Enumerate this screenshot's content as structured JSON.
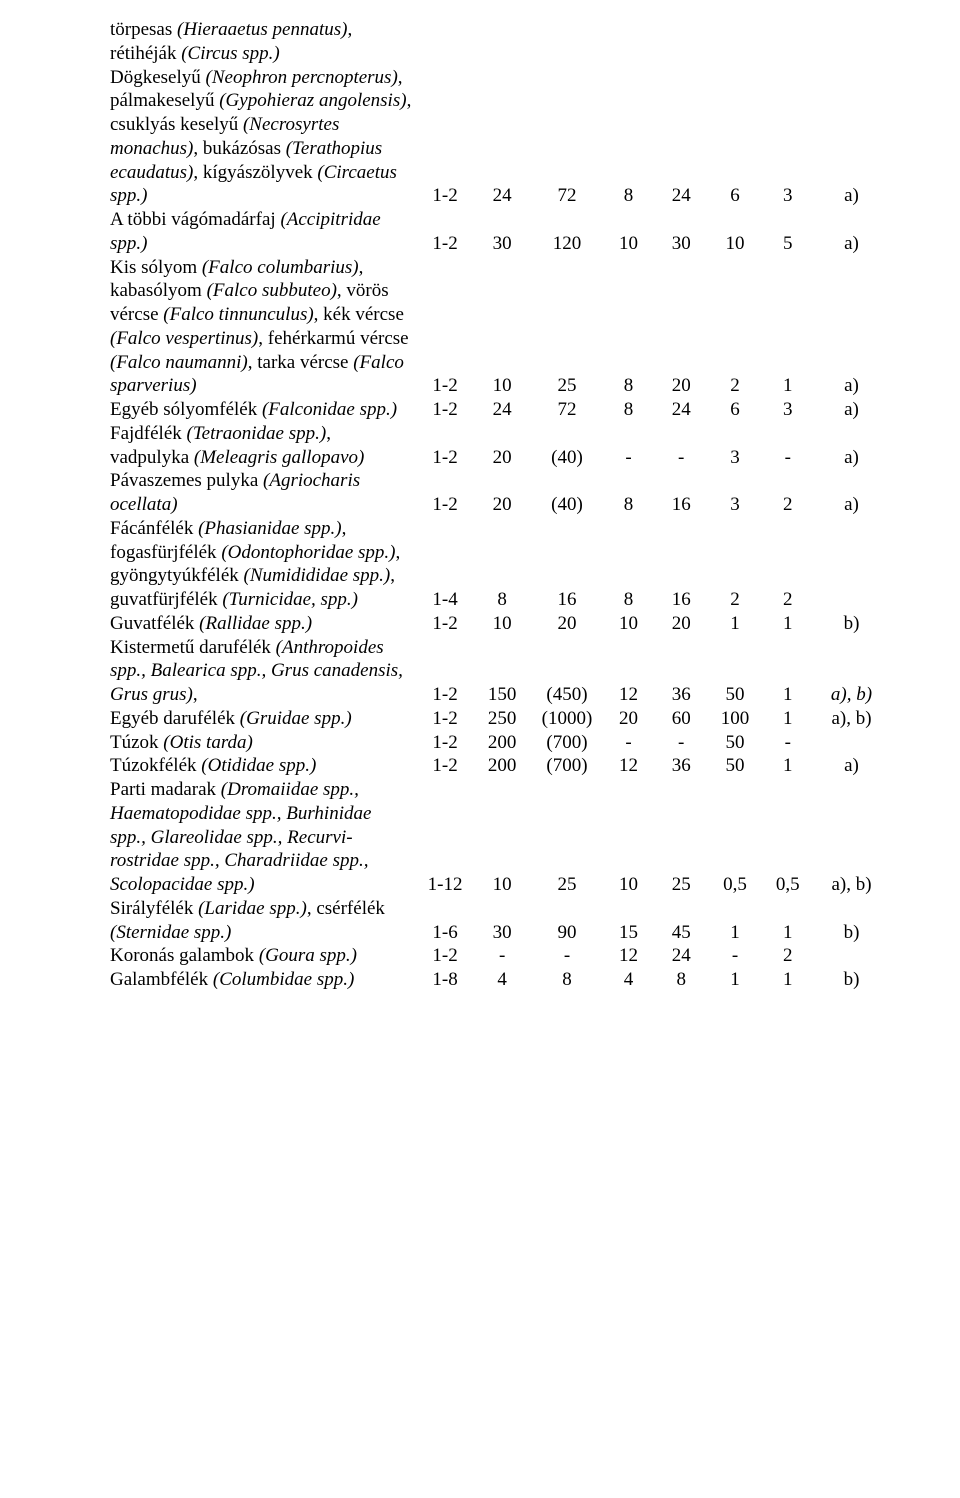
{
  "rows": [
    {
      "label_html": "törpesas <span class='it'>(Hieraaetus pennatus)</span>, rétihéják <span class='it'>(Circus spp.)</span><br>Dögkeselyű <span class='it'>(Neophron percnopterus)</span>, pálmakeselyű <span class='it'>(Gypohieraz angolensis)</span>, csuklyás keselyű <span class='it'>(Necrosyrtes monachus)</span>, bukázósas <span class='it'>(Terathopius ecaudatus)</span>, kígyászölyvek <span class='it'>(Circaetus spp.)</span>",
      "cols": [
        "1-2",
        "24",
        "72",
        "8",
        "24",
        "6",
        "3",
        "a)"
      ]
    },
    {
      "label_html": "A többi vágómadárfaj <span class='it'>(Accipitridae spp.)</span>",
      "cols": [
        "1-2",
        "30",
        "120",
        "10",
        "30",
        "10",
        "5",
        "a)"
      ]
    },
    {
      "label_html": "Kis sólyom <span class='it'>(Falco columbarius)</span>, kabasólyom <span class='it'>(Falco subbuteo)</span>, vörös vércse <span class='it'>(Falco tinnunculus)</span>, kék vércse <span class='it'>(Falco vespertinus)</span>, fehérkarmú vércse <span class='it'>(Falco naumanni)</span>, tarka vércse <span class='it'>(Falco sparverius)</span>",
      "cols": [
        "1-2",
        "10",
        "25",
        "8",
        "20",
        "2",
        "1",
        "a)"
      ]
    },
    {
      "label_html": "Egyéb sólyomfélék <span class='it'>(Falconidae spp.)</span>",
      "cols": [
        "1-2",
        "24",
        "72",
        "8",
        "24",
        "6",
        "3",
        "a)"
      ]
    },
    {
      "label_html": "Fajdfélék <span class='it'>(Tetraonidae spp.)</span>, vadpulyka <span class='it'>(Meleagris gallopavo)</span>",
      "cols": [
        "1-2",
        "20",
        "(40)",
        "-",
        "-",
        "3",
        "-",
        "a)"
      ]
    },
    {
      "label_html": "Pávaszemes pulyka <span class='it'>(Agriocharis ocellata)</span>",
      "cols": [
        "1-2",
        "20",
        "(40)",
        "8",
        "16",
        "3",
        "2",
        "a)"
      ]
    },
    {
      "label_html": "Fácánfélék <span class='it'>(Phasianidae spp.)</span>, fogasfürjfélék <span class='it'>(Odontophoridae spp.)</span>, gyöngytyúkfélék <span class='it'>(Numidididae spp.)</span>, guvatfürjfélék <span class='it'>(Turnicidae, spp.)</span>",
      "cols": [
        "1-4",
        "8",
        "16",
        "8",
        "16",
        "2",
        "2",
        ""
      ]
    },
    {
      "label_html": "Guvatfélék <span class='it'>(Rallidae spp.)</span>",
      "cols": [
        "1-2",
        "10",
        "20",
        "10",
        "20",
        "1",
        "1",
        "b)"
      ]
    },
    {
      "label_html": "Kistermetű darufélék <span class='it'>(Anthropoides spp., Balearica spp., Grus canadensis, Grus grus)</span>,",
      "cols": [
        "1-2",
        "150",
        "(450)",
        "12",
        "36",
        "50",
        "1",
        "<span class='it'>a), b)</span>"
      ]
    },
    {
      "label_html": "Egyéb darufélék <span class='it'>(Gruidae spp.)</span>",
      "cols": [
        "1-2",
        "250",
        "(1000)",
        "20",
        "60",
        "100",
        "1",
        "a), b)"
      ]
    },
    {
      "label_html": "Túzok <span class='it'>(Otis tarda)</span>",
      "cols": [
        "1-2",
        "200",
        "(700)",
        "-",
        "-",
        "50",
        "-",
        ""
      ]
    },
    {
      "label_html": "Túzokfélék <span class='it'>(Otididae spp.)</span>",
      "cols": [
        "1-2",
        "200",
        "(700)",
        "12",
        "36",
        "50",
        "1",
        "a)"
      ]
    },
    {
      "label_html": "Parti madarak <span class='it'>(Dromaiidae spp., Haematopodidae spp., Burhinidae spp., Glareolidae spp., Recurvi-rostridae spp., Charadriidae spp., Scolopacidae spp.)</span>",
      "cols": [
        "1-12",
        "10",
        "25",
        "10",
        "25",
        "0,5",
        "0,5",
        "a), b)"
      ]
    },
    {
      "label_html": "Sirályfélék <span class='it'>(Laridae spp.)</span>, csérfélék <span class='it'>(Sternidae spp.)</span>",
      "cols": [
        "1-6",
        "30",
        "90",
        "15",
        "45",
        "1",
        "1",
        "b)"
      ]
    },
    {
      "label_html": "Koronás galambok <span class='it'>(Goura spp.)</span>",
      "cols": [
        "1-2",
        "-",
        "-",
        "12",
        "24",
        "-",
        "2",
        ""
      ]
    },
    {
      "label_html": "Galambfélék <span class='it'>(Columbidae spp.)</span>",
      "cols": [
        "1-8",
        "4",
        "8",
        "4",
        "8",
        "1",
        "1",
        "b)"
      ]
    }
  ]
}
